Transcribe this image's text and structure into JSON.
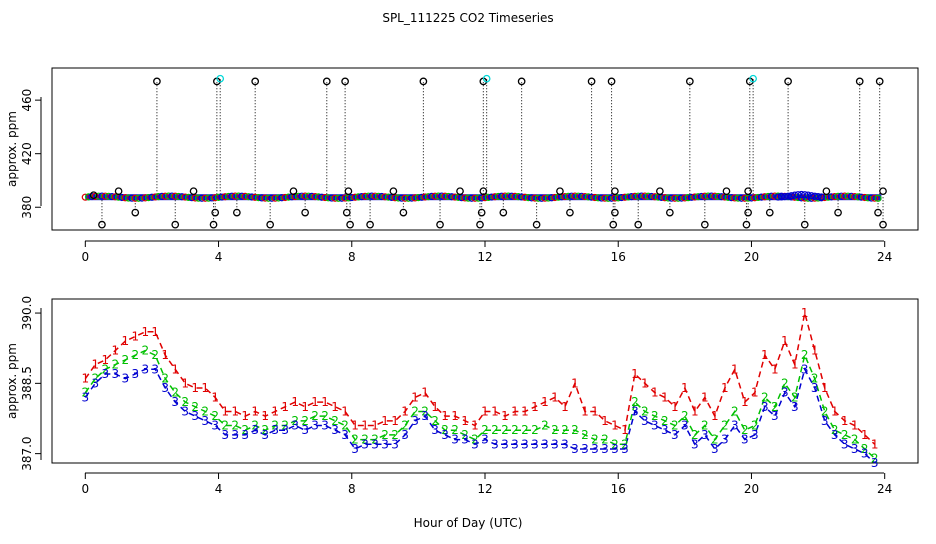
{
  "chart_data": [
    {
      "type": "scatter",
      "title": "SPL_111225  CO2 Timeseries",
      "xlabel": "",
      "ylabel": "approx. ppm",
      "xlim": [
        -1,
        25
      ],
      "ylim": [
        363,
        484
      ],
      "x_ticks": [
        "0",
        "4",
        "8",
        "12",
        "16",
        "20",
        "24"
      ],
      "y_ticks": [
        "380",
        "420",
        "460"
      ],
      "grid": false,
      "baseline_ppm": 387.5,
      "colors": {
        "black": "#000000",
        "red": "#e00000",
        "green": "#00c000",
        "blue": "#0000d0",
        "cyan": "#00d8d8"
      },
      "spikes_high": [
        {
          "x": 2.15,
          "y": 474
        },
        {
          "x": 3.95,
          "y": 474
        },
        {
          "x": 4.05,
          "y": 476
        },
        {
          "x": 5.1,
          "y": 474
        },
        {
          "x": 7.25,
          "y": 474
        },
        {
          "x": 7.8,
          "y": 474
        },
        {
          "x": 10.15,
          "y": 474
        },
        {
          "x": 11.95,
          "y": 474
        },
        {
          "x": 12.05,
          "y": 476
        },
        {
          "x": 13.1,
          "y": 474
        },
        {
          "x": 15.2,
          "y": 474
        },
        {
          "x": 15.8,
          "y": 474
        },
        {
          "x": 18.15,
          "y": 474
        },
        {
          "x": 19.95,
          "y": 474
        },
        {
          "x": 20.05,
          "y": 476
        },
        {
          "x": 21.1,
          "y": 474
        },
        {
          "x": 23.25,
          "y": 474
        },
        {
          "x": 23.85,
          "y": 474
        }
      ],
      "spikes_low": [
        {
          "x": 0.5,
          "y": 367
        },
        {
          "x": 1.5,
          "y": 376
        },
        {
          "x": 2.7,
          "y": 367
        },
        {
          "x": 3.85,
          "y": 367
        },
        {
          "x": 3.9,
          "y": 376
        },
        {
          "x": 4.55,
          "y": 376
        },
        {
          "x": 5.55,
          "y": 367
        },
        {
          "x": 6.6,
          "y": 376
        },
        {
          "x": 7.85,
          "y": 376
        },
        {
          "x": 7.95,
          "y": 367
        },
        {
          "x": 8.55,
          "y": 367
        },
        {
          "x": 9.55,
          "y": 376
        },
        {
          "x": 10.65,
          "y": 367
        },
        {
          "x": 11.85,
          "y": 367
        },
        {
          "x": 11.9,
          "y": 376
        },
        {
          "x": 12.55,
          "y": 376
        },
        {
          "x": 13.55,
          "y": 367
        },
        {
          "x": 14.55,
          "y": 376
        },
        {
          "x": 15.85,
          "y": 367
        },
        {
          "x": 15.9,
          "y": 376
        },
        {
          "x": 16.6,
          "y": 367
        },
        {
          "x": 17.55,
          "y": 376
        },
        {
          "x": 18.6,
          "y": 367
        },
        {
          "x": 19.85,
          "y": 367
        },
        {
          "x": 19.9,
          "y": 376
        },
        {
          "x": 20.55,
          "y": 376
        },
        {
          "x": 21.6,
          "y": 367
        },
        {
          "x": 22.6,
          "y": 376
        },
        {
          "x": 23.8,
          "y": 376
        },
        {
          "x": 23.95,
          "y": 367
        }
      ],
      "bumps": [
        {
          "x": 0.25,
          "y": 389
        },
        {
          "x": 1.0,
          "y": 392
        },
        {
          "x": 3.25,
          "y": 392
        },
        {
          "x": 6.25,
          "y": 392
        },
        {
          "x": 7.9,
          "y": 392
        },
        {
          "x": 9.25,
          "y": 392
        },
        {
          "x": 11.25,
          "y": 392
        },
        {
          "x": 11.95,
          "y": 392
        },
        {
          "x": 14.25,
          "y": 392
        },
        {
          "x": 15.9,
          "y": 392
        },
        {
          "x": 17.25,
          "y": 392
        },
        {
          "x": 19.25,
          "y": 392
        },
        {
          "x": 19.9,
          "y": 392
        },
        {
          "x": 22.25,
          "y": 392
        },
        {
          "x": 23.95,
          "y": 392
        }
      ]
    },
    {
      "type": "line",
      "title": "",
      "xlabel": "Hour of Day (UTC)",
      "ylabel": "approx. ppm",
      "xlim": [
        -1,
        25
      ],
      "ylim": [
        386.8,
        390.3
      ],
      "x_ticks": [
        "0",
        "4",
        "8",
        "12",
        "16",
        "20",
        "24"
      ],
      "y_ticks": [
        "387.0",
        "388.5",
        "390.0"
      ],
      "grid": false,
      "series": [
        {
          "name": "1",
          "color": "#e00000",
          "x": [
            0.0,
            0.3,
            0.6,
            0.9,
            1.2,
            1.5,
            1.8,
            2.1,
            2.4,
            2.7,
            3.0,
            3.3,
            3.6,
            3.9,
            4.2,
            4.5,
            4.8,
            5.1,
            5.4,
            5.7,
            6.0,
            6.3,
            6.6,
            6.9,
            7.2,
            7.5,
            7.8,
            8.1,
            8.4,
            8.7,
            9.0,
            9.3,
            9.6,
            9.9,
            10.2,
            10.5,
            10.8,
            11.1,
            11.4,
            11.7,
            12.0,
            12.3,
            12.6,
            12.9,
            13.2,
            13.5,
            13.8,
            14.1,
            14.4,
            14.7,
            15.0,
            15.3,
            15.6,
            15.9,
            16.2,
            16.5,
            16.8,
            17.1,
            17.4,
            17.7,
            18.0,
            18.3,
            18.6,
            18.9,
            19.2,
            19.5,
            19.8,
            20.1,
            20.4,
            20.7,
            21.0,
            21.3,
            21.6,
            21.9,
            22.2,
            22.5,
            22.8,
            23.1,
            23.4,
            23.7
          ],
          "y": [
            388.6,
            388.9,
            389.0,
            389.2,
            389.4,
            389.5,
            389.6,
            389.6,
            389.1,
            388.8,
            388.5,
            388.4,
            388.4,
            388.2,
            387.9,
            387.9,
            387.8,
            387.9,
            387.8,
            387.9,
            388.0,
            388.1,
            388.0,
            388.1,
            388.1,
            388.0,
            387.9,
            387.6,
            387.6,
            387.6,
            387.7,
            387.7,
            387.9,
            388.2,
            388.3,
            388.0,
            387.8,
            387.8,
            387.7,
            387.6,
            387.9,
            387.9,
            387.8,
            387.9,
            387.9,
            388.0,
            388.1,
            388.2,
            388.0,
            388.5,
            387.9,
            387.9,
            387.7,
            387.6,
            387.5,
            388.7,
            388.5,
            388.3,
            388.2,
            388.0,
            388.4,
            387.9,
            388.2,
            387.8,
            388.4,
            388.8,
            388.1,
            388.3,
            389.1,
            388.8,
            389.4,
            388.9,
            390.0,
            389.2,
            388.4,
            387.9,
            387.7,
            387.6,
            387.4,
            387.2
          ]
        },
        {
          "name": "2",
          "color": "#00c000",
          "x": [
            0.0,
            0.3,
            0.6,
            0.9,
            1.2,
            1.5,
            1.8,
            2.1,
            2.4,
            2.7,
            3.0,
            3.3,
            3.6,
            3.9,
            4.2,
            4.5,
            4.8,
            5.1,
            5.4,
            5.7,
            6.0,
            6.3,
            6.6,
            6.9,
            7.2,
            7.5,
            7.8,
            8.1,
            8.4,
            8.7,
            9.0,
            9.3,
            9.6,
            9.9,
            10.2,
            10.5,
            10.8,
            11.1,
            11.4,
            11.7,
            12.0,
            12.3,
            12.6,
            12.9,
            13.2,
            13.5,
            13.8,
            14.1,
            14.4,
            14.7,
            15.0,
            15.3,
            15.6,
            15.9,
            16.2,
            16.5,
            16.8,
            17.1,
            17.4,
            17.7,
            18.0,
            18.3,
            18.6,
            18.9,
            19.2,
            19.5,
            19.8,
            20.1,
            20.4,
            20.7,
            21.0,
            21.3,
            21.6,
            21.9,
            22.2,
            22.5,
            22.8,
            23.1,
            23.4,
            23.7
          ],
          "y": [
            388.3,
            388.6,
            388.8,
            388.9,
            389.0,
            389.1,
            389.2,
            389.1,
            388.6,
            388.3,
            388.1,
            388.0,
            387.9,
            387.8,
            387.6,
            387.6,
            387.5,
            387.6,
            387.5,
            387.6,
            387.6,
            387.7,
            387.7,
            387.8,
            387.8,
            387.7,
            387.6,
            387.3,
            387.3,
            387.3,
            387.4,
            387.4,
            387.6,
            387.9,
            387.9,
            387.7,
            387.5,
            387.5,
            387.4,
            387.3,
            387.5,
            387.5,
            387.5,
            387.5,
            387.5,
            387.5,
            387.6,
            387.5,
            387.5,
            387.5,
            387.4,
            387.3,
            387.3,
            387.2,
            387.2,
            388.1,
            387.9,
            387.8,
            387.7,
            387.6,
            387.8,
            387.4,
            387.6,
            387.3,
            387.6,
            387.9,
            387.5,
            387.6,
            388.2,
            388.0,
            388.5,
            388.2,
            389.1,
            388.6,
            387.9,
            387.5,
            387.4,
            387.3,
            387.1,
            386.9
          ]
        },
        {
          "name": "3",
          "color": "#0000d0",
          "x": [
            0.0,
            0.3,
            0.6,
            0.9,
            1.2,
            1.5,
            1.8,
            2.1,
            2.4,
            2.7,
            3.0,
            3.3,
            3.6,
            3.9,
            4.2,
            4.5,
            4.8,
            5.1,
            5.4,
            5.7,
            6.0,
            6.3,
            6.6,
            6.9,
            7.2,
            7.5,
            7.8,
            8.1,
            8.4,
            8.7,
            9.0,
            9.3,
            9.6,
            9.9,
            10.2,
            10.5,
            10.8,
            11.1,
            11.4,
            11.7,
            12.0,
            12.3,
            12.6,
            12.9,
            13.2,
            13.5,
            13.8,
            14.1,
            14.4,
            14.7,
            15.0,
            15.3,
            15.6,
            15.9,
            16.2,
            16.5,
            16.8,
            17.1,
            17.4,
            17.7,
            18.0,
            18.3,
            18.6,
            18.9,
            19.2,
            19.5,
            19.8,
            20.1,
            20.4,
            20.7,
            21.0,
            21.3,
            21.6,
            21.9,
            22.2,
            22.5,
            22.8,
            23.1,
            23.4,
            23.7
          ],
          "y": [
            388.2,
            388.5,
            388.7,
            388.7,
            388.6,
            388.7,
            388.8,
            388.8,
            388.4,
            388.1,
            387.9,
            387.8,
            387.7,
            387.6,
            387.4,
            387.4,
            387.4,
            387.5,
            387.4,
            387.5,
            387.5,
            387.6,
            387.5,
            387.6,
            387.6,
            387.5,
            387.4,
            387.1,
            387.2,
            387.2,
            387.2,
            387.2,
            387.4,
            387.7,
            387.8,
            387.5,
            387.4,
            387.3,
            387.3,
            387.2,
            387.3,
            387.2,
            387.2,
            387.2,
            387.2,
            387.2,
            387.2,
            387.2,
            387.2,
            387.1,
            387.1,
            387.1,
            387.1,
            387.1,
            387.1,
            387.9,
            387.7,
            387.6,
            387.5,
            387.4,
            387.6,
            387.2,
            387.4,
            387.1,
            387.3,
            387.6,
            387.3,
            387.4,
            388.0,
            387.8,
            388.3,
            388.0,
            388.8,
            388.4,
            387.7,
            387.4,
            387.2,
            387.1,
            387.0,
            386.8
          ]
        }
      ]
    }
  ]
}
